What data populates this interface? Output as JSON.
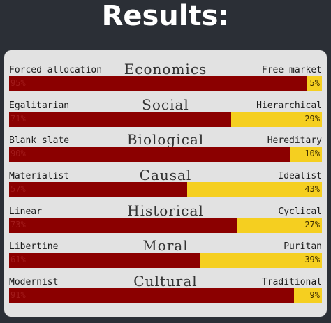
{
  "title": "Results:",
  "axes": [
    {
      "name": "Economics",
      "left_label": "Forced allocation",
      "right_label": "Free market",
      "left_pct": 95,
      "left_text": "95%",
      "right_text": "5%"
    },
    {
      "name": "Social",
      "left_label": "Egalitarian",
      "right_label": "Hierarchical",
      "left_pct": 71,
      "left_text": "71%",
      "right_text": "29%"
    },
    {
      "name": "Biological",
      "left_label": "Blank slate",
      "right_label": "Hereditary",
      "left_pct": 90,
      "left_text": "90%",
      "right_text": "10%"
    },
    {
      "name": "Causal",
      "left_label": "Materialist",
      "right_label": "Idealist",
      "left_pct": 57,
      "left_text": "57%",
      "right_text": "43%"
    },
    {
      "name": "Historical",
      "left_label": "Linear",
      "right_label": "Cyclical",
      "left_pct": 73,
      "left_text": "73%",
      "right_text": "27%"
    },
    {
      "name": "Moral",
      "left_label": "Libertine",
      "right_label": "Puritan",
      "left_pct": 61,
      "left_text": "61%",
      "right_text": "39%"
    },
    {
      "name": "Cultural",
      "left_label": "Modernist",
      "right_label": "Traditional",
      "left_pct": 91,
      "left_text": "91%",
      "right_text": "9%"
    }
  ],
  "colors": {
    "left_bar": "#8b0000",
    "right_bar": "#f5cf20",
    "panel": "#e2e2e2",
    "background": "#2b2f36"
  }
}
